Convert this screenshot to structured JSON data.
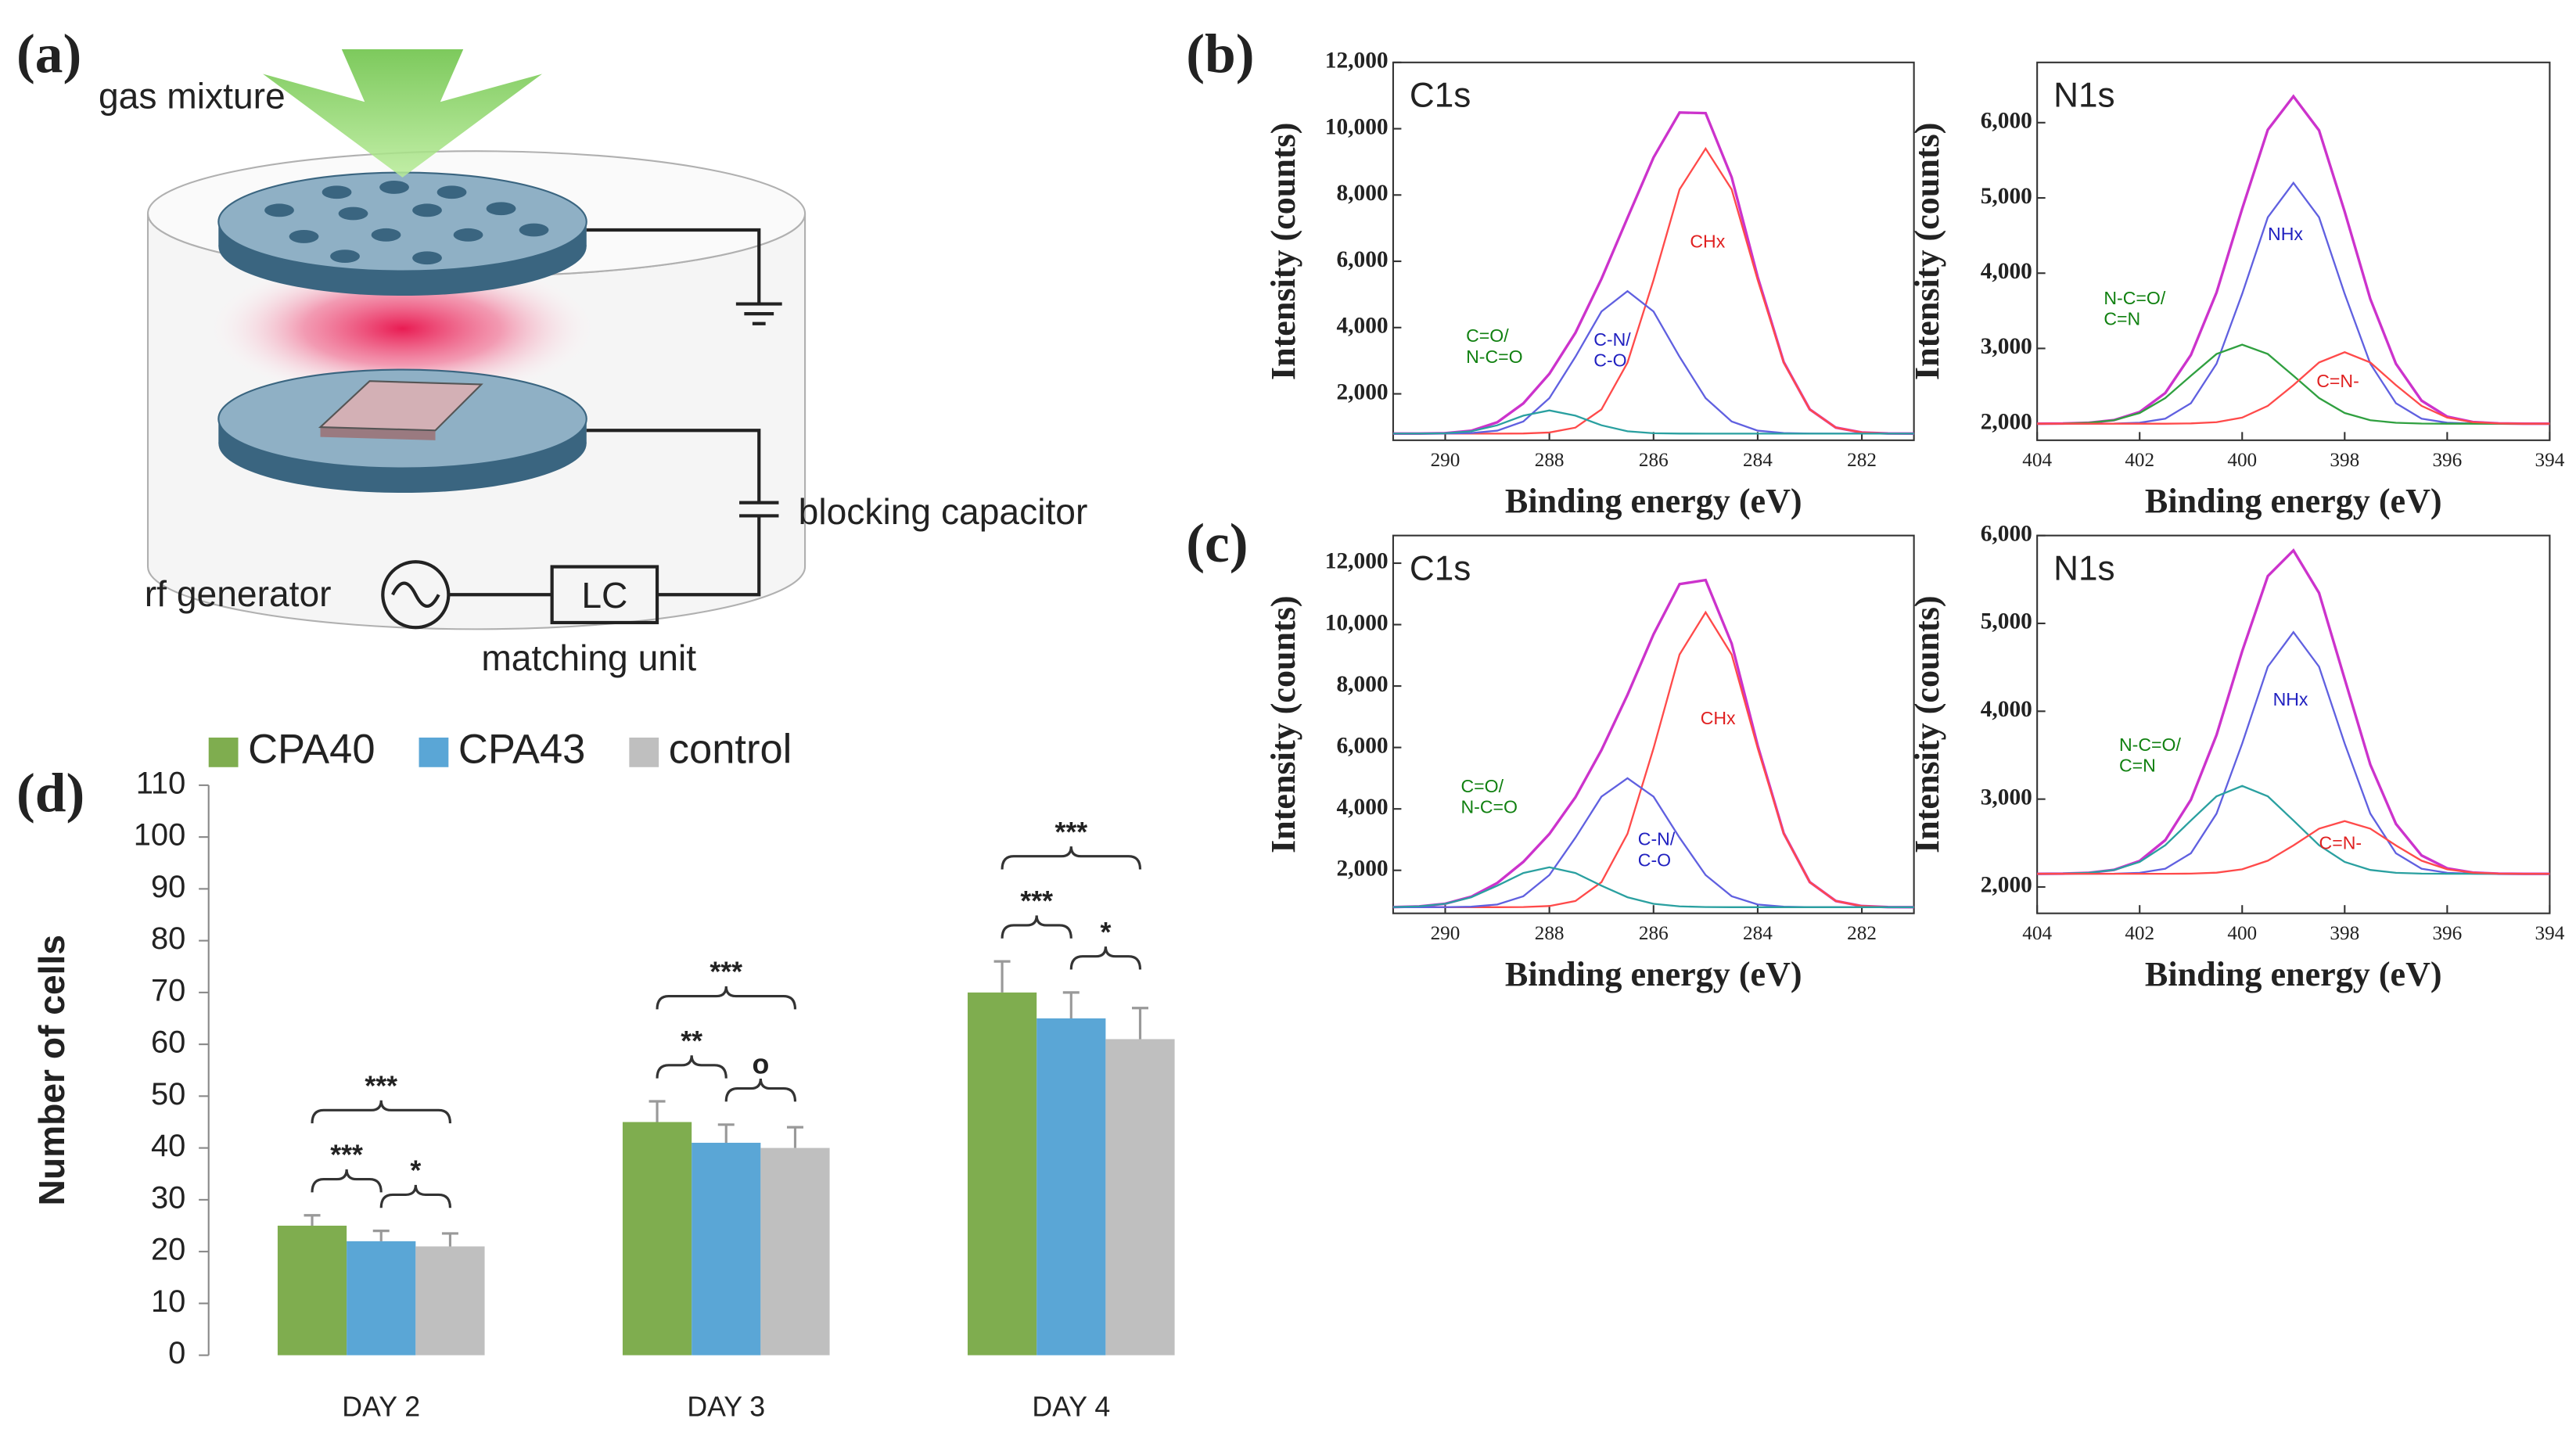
{
  "panel_labels": [
    "(a)",
    "(b)",
    "(c)",
    "(d)"
  ],
  "diagram": {
    "gas": "gas mixture",
    "capacitor": "blocking capacitor",
    "generator": "rf generator",
    "lc": "LC",
    "matching": "matching unit"
  },
  "chart_data": [
    {
      "type": "line",
      "title": "C1s",
      "xlabel": "Binding energy (eV)",
      "ylabel": "Intensity (counts)",
      "x": [
        291,
        290.5,
        290,
        289.5,
        289,
        288.5,
        288,
        287.5,
        287,
        286.5,
        286,
        285.5,
        285,
        284.5,
        284,
        283.5,
        283,
        282.5,
        282,
        281.5,
        281
      ],
      "xlim": [
        291,
        281
      ],
      "xticks": [
        290,
        288,
        286,
        284,
        282
      ],
      "ylim": [
        600,
        12000
      ],
      "yticks": [
        {
          "value": 2000,
          "label": "2,000"
        },
        {
          "value": 4000,
          "label": "4,000"
        },
        {
          "value": 6000,
          "label": "6,000"
        },
        {
          "value": 8000,
          "label": "8,000"
        },
        {
          "value": 10000,
          "label": "10,000"
        },
        {
          "value": 12000,
          "label": "12,000"
        }
      ],
      "series": [
        {
          "color": "#cc33cc",
          "values": [
            800,
            801,
            814,
            887,
            1142,
            1712,
            2605,
            3841,
            5468,
            7311,
            9132,
            10489,
            10471,
            8536,
            5525,
            2958,
            1533,
            981,
            834,
            804,
            800
          ]
        },
        {
          "color": "#ff4a4a",
          "label": [
            "CHx"
          ],
          "label_color": "#e02020",
          "values": [
            800,
            800,
            800,
            800,
            800,
            804,
            834,
            981,
            1531,
            2941,
            5435,
            8170,
            9400,
            8170,
            5435,
            2941,
            1531,
            981,
            834,
            804,
            800
          ]
        },
        {
          "color": "#6060e0",
          "label": [
            "C-N/",
            "C-O"
          ],
          "label_color": "#2020c0",
          "values": [
            800,
            800,
            802,
            817,
            890,
            1166,
            1871,
            3118,
            4485,
            5100,
            4485,
            3118,
            1871,
            1166,
            890,
            817,
            802,
            800,
            800,
            800,
            800
          ]
        },
        {
          "color": "#2aa0a0",
          "label": [
            "C=O/",
            "N-C=O"
          ],
          "label_color": "#108010",
          "values": [
            800,
            801,
            812,
            870,
            1052,
            1342,
            1500,
            1342,
            1052,
            870,
            812,
            801,
            800,
            800,
            800,
            800,
            800,
            800,
            800,
            800,
            800
          ]
        }
      ]
    },
    {
      "type": "line",
      "title": "N1s",
      "xlabel": "Binding energy (eV)",
      "ylabel": "Intensity (counts)",
      "x": [
        404,
        403.5,
        403,
        402.5,
        402,
        401.5,
        401,
        400.5,
        400,
        399.5,
        399,
        398.5,
        398,
        397.5,
        397,
        396.5,
        396,
        395.5,
        395,
        394.5,
        394
      ],
      "xlim": [
        404,
        394
      ],
      "xticks": [
        404,
        402,
        400,
        398,
        396,
        394
      ],
      "ylim": [
        1780,
        6800
      ],
      "yticks": [
        {
          "value": 2000,
          "label": "2,000"
        },
        {
          "value": 3000,
          "label": "3,000"
        },
        {
          "value": 4000,
          "label": "4,000"
        },
        {
          "value": 5000,
          "label": "5,000"
        },
        {
          "value": 6000,
          "label": "6,000"
        }
      ],
      "series": [
        {
          "color": "#cc33cc",
          "values": [
            2000,
            2002,
            2012,
            2048,
            2155,
            2408,
            2913,
            3743,
            4856,
            5905,
            6349,
            5897,
            4817,
            3657,
            2796,
            2306,
            2094,
            2022,
            2004,
            2000,
            2000
          ]
        },
        {
          "color": "#6060e0",
          "label": [
            "NHx"
          ],
          "label_color": "#2020c0",
          "values": [
            2000,
            2000,
            2000,
            2002,
            2013,
            2067,
            2272,
            2797,
            3725,
            4742,
            5200,
            4742,
            3725,
            2797,
            2272,
            2067,
            2013,
            2002,
            2000,
            2000,
            2000
          ]
        },
        {
          "color": "#30a040",
          "label": [
            "N-C=O/",
            "C=N"
          ],
          "label_color": "#108010",
          "values": [
            2000,
            2002,
            2012,
            2046,
            2142,
            2341,
            2637,
            2926,
            3050,
            2926,
            2637,
            2341,
            2142,
            2046,
            2012,
            2002,
            2000,
            2000,
            2000,
            2000,
            2000
          ]
        },
        {
          "color": "#ff4a4a",
          "label": [
            "C=N-"
          ],
          "label_color": "#e02020",
          "values": [
            2000,
            2000,
            2000,
            2000,
            2000,
            2000,
            2004,
            2020,
            2081,
            2237,
            2512,
            2814,
            2950,
            2814,
            2512,
            2237,
            2081,
            2020,
            2004,
            2000,
            2000
          ]
        }
      ]
    },
    {
      "type": "line",
      "title": "C1s",
      "xlabel": "Binding energy (eV)",
      "ylabel": "Intensity (counts)",
      "x": [
        291,
        290.5,
        290,
        289.5,
        289,
        288.5,
        288,
        287.5,
        287,
        286.5,
        286,
        285.5,
        285,
        284.5,
        284,
        283.5,
        283,
        282.5,
        282,
        281.5,
        281
      ],
      "xlim": [
        291,
        281
      ],
      "xticks": [
        290,
        288,
        286,
        284,
        282
      ],
      "ylim": [
        600,
        12900
      ],
      "yticks": [
        {
          "value": 2000,
          "label": "2,000"
        },
        {
          "value": 4000,
          "label": "4,000"
        },
        {
          "value": 6000,
          "label": "6,000"
        },
        {
          "value": 8000,
          "label": "8,000"
        },
        {
          "value": 10000,
          "label": "10,000"
        },
        {
          "value": 12000,
          "label": "12,000"
        }
      ],
      "series": [
        {
          "color": "#cc33cc",
          "values": [
            805,
            827,
            913,
            1141,
            1589,
            2276,
            3184,
            4380,
            5916,
            7714,
            9684,
            11318,
            11451,
            9384,
            6062,
            3207,
            1618,
            1002,
            838,
            805,
            800
          ]
        },
        {
          "color": "#ff4a4a",
          "label": [
            "CHx"
          ],
          "label_color": "#e02020",
          "values": [
            800,
            800,
            800,
            800,
            800,
            805,
            838,
            1002,
            1616,
            3190,
            5974,
            9027,
            10400,
            9027,
            5974,
            3190,
            1616,
            1002,
            838,
            805,
            800
          ]
        },
        {
          "color": "#6060e0",
          "label": [
            "C-N/",
            "C-O"
          ],
          "label_color": "#2020c0",
          "values": [
            800,
            800,
            802,
            817,
            888,
            1157,
            1846,
            3064,
            4399,
            5000,
            4399,
            3064,
            1846,
            1157,
            888,
            817,
            802,
            800,
            800,
            800,
            800
          ]
        },
        {
          "color": "#2aa0a0",
          "label": [
            "C=O/",
            "N-C=O"
          ],
          "label_color": "#108010",
          "values": [
            805,
            827,
            911,
            1124,
            1501,
            1914,
            2100,
            1914,
            1501,
            1124,
            911,
            827,
            805,
            800,
            800,
            800,
            800,
            800,
            800,
            800,
            800
          ]
        }
      ]
    },
    {
      "type": "line",
      "title": "N1s",
      "xlabel": "Binding energy (eV)",
      "ylabel": "Intensity (counts)",
      "x": [
        404,
        403.5,
        403,
        402.5,
        402,
        401.5,
        401,
        400.5,
        400,
        399.5,
        399,
        398.5,
        398,
        397.5,
        397,
        396.5,
        396,
        395.5,
        395,
        394.5,
        394
      ],
      "xlim": [
        404,
        394
      ],
      "xticks": [
        404,
        402,
        400,
        398,
        396,
        394
      ],
      "ylim": [
        1700,
        6000
      ],
      "yticks": [
        {
          "value": 2000,
          "label": "2,000"
        },
        {
          "value": 3000,
          "label": "3,000"
        },
        {
          "value": 4000,
          "label": "4,000"
        },
        {
          "value": 5000,
          "label": "5,000"
        },
        {
          "value": 6000,
          "label": "6,000"
        }
      ],
      "series": [
        {
          "color": "#cc33cc",
          "values": [
            2150,
            2152,
            2161,
            2195,
            2296,
            2533,
            2993,
            3730,
            4683,
            5538,
            5830,
            5346,
            4367,
            3393,
            2718,
            2359,
            2212,
            2164,
            2152,
            2150,
            2150
          ]
        },
        {
          "color": "#6060e0",
          "label": [
            "NHx"
          ],
          "label_color": "#2020c0",
          "values": [
            2150,
            2150,
            2150,
            2151,
            2161,
            2208,
            2384,
            2835,
            3632,
            4507,
            4900,
            4507,
            3632,
            2835,
            2384,
            2208,
            2161,
            2151,
            2150,
            2150,
            2150
          ]
        },
        {
          "color": "#2aa0a0",
          "label": [
            "N-C=O/",
            "C=N"
          ],
          "label_color": "#108010",
          "values": [
            2150,
            2152,
            2161,
            2194,
            2285,
            2475,
            2757,
            3032,
            3150,
            3032,
            2757,
            2475,
            2285,
            2194,
            2161,
            2152,
            2150,
            2150,
            2150,
            2150,
            2150
          ]
        },
        {
          "color": "#ff4a4a",
          "label": [
            "C=N-"
          ],
          "label_color": "#e02020",
          "values": [
            2150,
            2150,
            2150,
            2150,
            2150,
            2150,
            2152,
            2163,
            2201,
            2299,
            2473,
            2664,
            2750,
            2664,
            2473,
            2299,
            2201,
            2163,
            2152,
            2150,
            2150
          ]
        }
      ]
    },
    {
      "type": "bar",
      "ylabel": "Number of cells",
      "categories": [
        "DAY 2",
        "DAY 3",
        "DAY 4"
      ],
      "ylim": [
        0,
        110
      ],
      "yticks": [
        0,
        10,
        20,
        30,
        40,
        50,
        60,
        70,
        80,
        90,
        100,
        110
      ],
      "series": [
        {
          "name": "CPA40",
          "color": "#7fad4f",
          "values": [
            25,
            45,
            70
          ],
          "errors": [
            2,
            4,
            6
          ]
        },
        {
          "name": "CPA43",
          "color": "#5aa6d6",
          "values": [
            22,
            41,
            65
          ],
          "errors": [
            2,
            3.5,
            5
          ]
        },
        {
          "name": "control",
          "color": "#bfbfbf",
          "values": [
            21,
            40,
            61
          ],
          "errors": [
            2.5,
            4,
            6
          ]
        }
      ],
      "significance": [
        [
          "***",
          "*",
          "***"
        ],
        [
          "**",
          "o",
          "***"
        ],
        [
          "***",
          "*",
          "***"
        ]
      ]
    }
  ]
}
